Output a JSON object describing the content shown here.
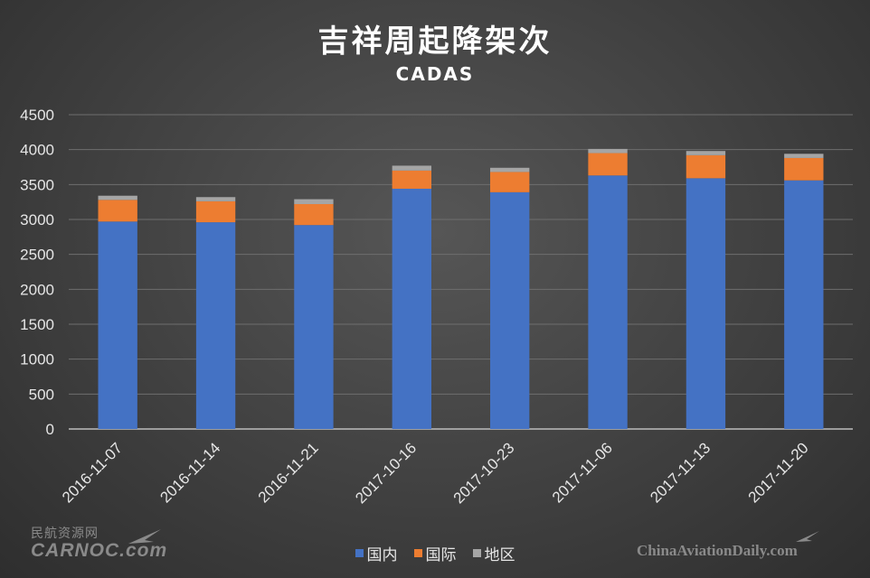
{
  "chart_data": {
    "type": "bar",
    "stacked": true,
    "title": "吉祥周起降架次",
    "subtitle": "CADAS",
    "categories": [
      "2016-11-07",
      "2016-11-14",
      "2016-11-21",
      "2017-10-16",
      "2017-10-23",
      "2017-11-06",
      "2017-11-13",
      "2017-11-20"
    ],
    "series": [
      {
        "name": "国内",
        "color": "#4472c4",
        "values": [
          2970,
          2960,
          2920,
          3440,
          3390,
          3630,
          3590,
          3560
        ]
      },
      {
        "name": "国际",
        "color": "#ed7d31",
        "values": [
          310,
          300,
          300,
          260,
          290,
          320,
          330,
          320
        ]
      },
      {
        "name": "地区",
        "color": "#a5a5a5",
        "values": [
          60,
          60,
          70,
          70,
          60,
          60,
          60,
          60
        ]
      }
    ],
    "ylim": [
      0,
      4500
    ],
    "yticks": [
      0,
      500,
      1000,
      1500,
      2000,
      2500,
      3000,
      3500,
      4000,
      4500
    ],
    "grid": true,
    "legend": "bottom"
  },
  "watermarks": {
    "left_cn": "民航资源网",
    "left_en": "CARNOC.com",
    "right_en": "ChinaAviationDaily.com"
  }
}
